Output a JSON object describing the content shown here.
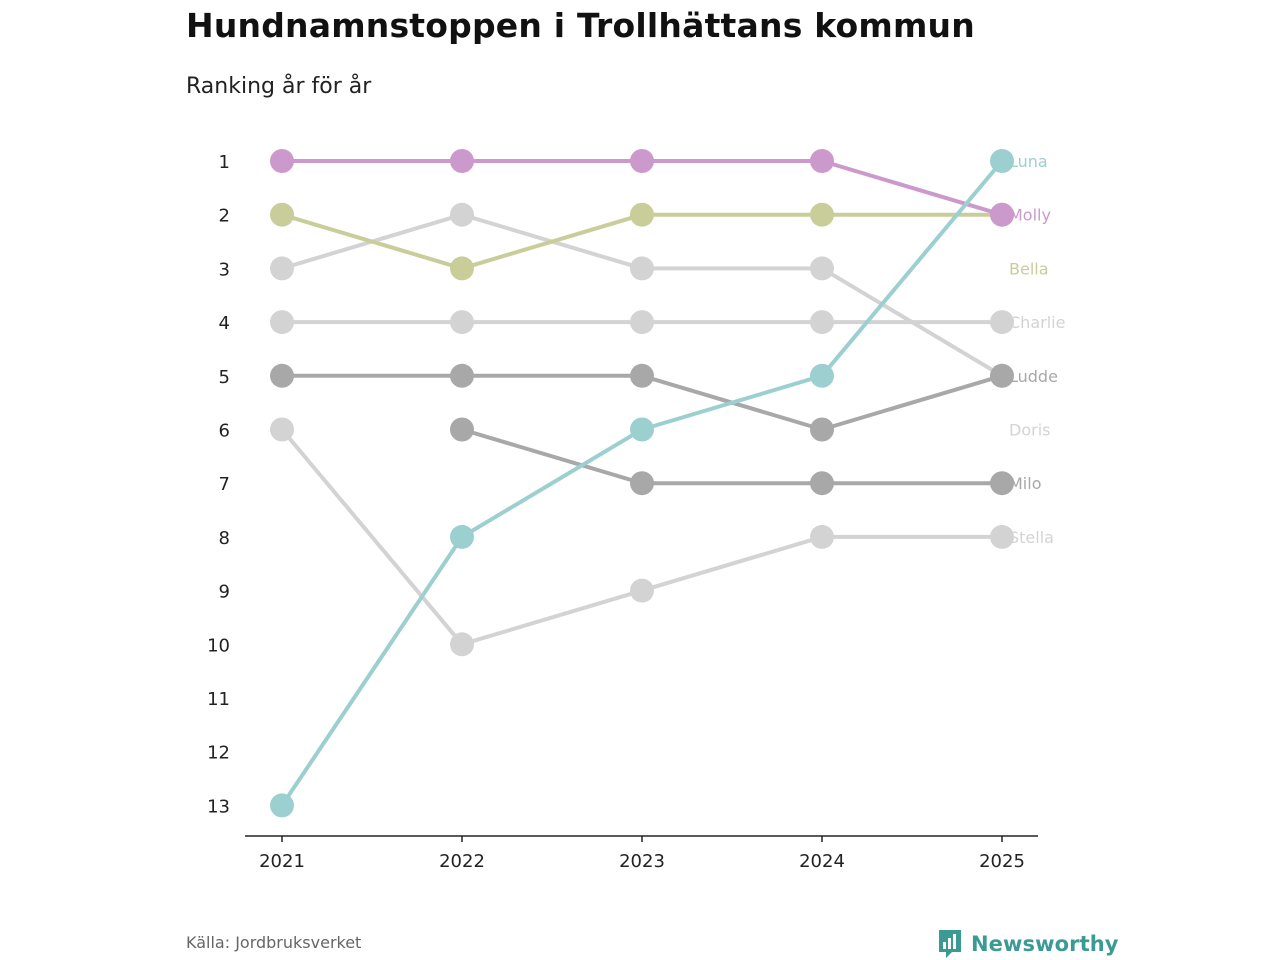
{
  "title": "Hundnamnstoppen i Trollhättans kommun",
  "subtitle": "Ranking år för år",
  "source": "Källa: Jordbruksverket",
  "brand": "Newsworthy",
  "colors": {
    "luna": "#9ccfcf",
    "molly": "#cc99cc",
    "bella": "#c9cd99",
    "light_gray": "#d3d3d3",
    "dark_gray": "#a8a8a8",
    "axis": "#222222",
    "brand": "#3b9a94"
  },
  "chart_data": {
    "type": "line",
    "title": "Hundnamnstoppen i Trollhättans kommun",
    "subtitle": "Ranking år för år",
    "x": [
      "2021",
      "2022",
      "2023",
      "2024",
      "2025"
    ],
    "y_ticks": [
      1,
      2,
      3,
      4,
      5,
      6,
      7,
      8,
      9,
      10,
      11,
      12,
      13
    ],
    "ylim": [
      1,
      13
    ],
    "y_reversed": true,
    "series": [
      {
        "name": "Charlie",
        "color": "#d3d3d3",
        "values": [
          4,
          4,
          4,
          4,
          4
        ]
      },
      {
        "name": "Doris",
        "color": "#d3d3d3",
        "values": [
          3,
          2,
          3,
          3,
          5
        ]
      },
      {
        "name": "Stella",
        "color": "#d3d3d3",
        "values": [
          6,
          10,
          9,
          8,
          8
        ]
      },
      {
        "name": "Ludde",
        "color": "#a8a8a8",
        "values": [
          5,
          5,
          5,
          6,
          5
        ]
      },
      {
        "name": "Milo",
        "color": "#a8a8a8",
        "values": [
          null,
          6,
          7,
          7,
          7
        ]
      },
      {
        "name": "Bella",
        "color": "#c9cd99",
        "values": [
          2,
          3,
          2,
          2,
          2
        ]
      },
      {
        "name": "Molly",
        "color": "#cc99cc",
        "values": [
          1,
          1,
          1,
          1,
          2
        ]
      },
      {
        "name": "Luna",
        "color": "#9ccfcf",
        "values": [
          13,
          8,
          6,
          5,
          1
        ]
      }
    ],
    "end_labels": [
      {
        "name": "Luna",
        "color": "#9ccfcf",
        "rank": 1
      },
      {
        "name": "Molly",
        "color": "#cc99cc",
        "rank": 2
      },
      {
        "name": "Bella",
        "color": "#c9cd99",
        "rank": 3
      },
      {
        "name": "Charlie",
        "color": "#d3d3d3",
        "rank": 4
      },
      {
        "name": "Ludde",
        "color": "#a8a8a8",
        "rank": 5
      },
      {
        "name": "Doris",
        "color": "#d3d3d3",
        "rank": 6
      },
      {
        "name": "Milo",
        "color": "#a8a8a8",
        "rank": 7
      },
      {
        "name": "Stella",
        "color": "#d3d3d3",
        "rank": 8
      }
    ]
  }
}
